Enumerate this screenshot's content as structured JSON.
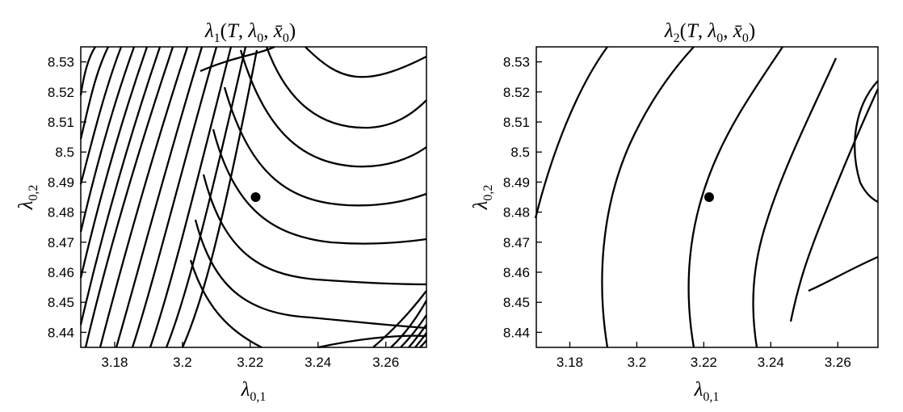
{
  "chart_data": [
    {
      "type": "contour",
      "title": "λ1(T, λ0, x̄0)",
      "xlabel": "λ0,1",
      "ylabel": "λ0,2",
      "xlim": [
        3.17,
        3.272
      ],
      "ylim": [
        8.435,
        8.535
      ],
      "xticks": [
        "3.18",
        "3.2",
        "3.22",
        "3.24",
        "3.26"
      ],
      "yticks": [
        "8.44",
        "8.45",
        "8.46",
        "8.47",
        "8.48",
        "8.49",
        "8.5",
        "8.51",
        "8.52",
        "8.53"
      ],
      "point": {
        "x": 3.2216,
        "y": 8.485
      },
      "grid": false
    },
    {
      "type": "contour",
      "title": "λ2(T, λ0, x̄0)",
      "xlabel": "λ0,1",
      "ylabel": "λ0,2",
      "xlim": [
        3.17,
        3.272
      ],
      "ylim": [
        8.435,
        8.535
      ],
      "xticks": [
        "3.18",
        "3.2",
        "3.22",
        "3.24",
        "3.26"
      ],
      "yticks": [
        "8.44",
        "8.45",
        "8.46",
        "8.47",
        "8.48",
        "8.49",
        "8.5",
        "8.51",
        "8.52",
        "8.53"
      ],
      "point": {
        "x": 3.2216,
        "y": 8.485
      },
      "grid": false
    }
  ]
}
